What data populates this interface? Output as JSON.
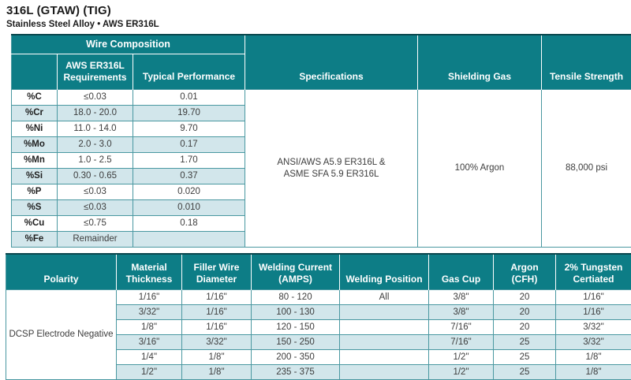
{
  "doc": {
    "title": "316L (GTAW) (TIG)",
    "subtitle": "Stainless Steel Alloy • AWS ER316L"
  },
  "colors": {
    "header_teal": "#0D7D86",
    "row_stripe": "#D2E6EB",
    "grid_border": "#4A98A1",
    "table_top_border": "#0A474D"
  },
  "composition_table": {
    "title": "Wire Composition",
    "columns": {
      "requirements_line1": "AWS ER316L",
      "requirements_line2": "Requirements",
      "typical": "Typical Performance",
      "specifications": "Specifications",
      "shielding_gas": "Shielding Gas",
      "tensile_strength": "Tensile Strength"
    },
    "rows": [
      {
        "element": "%C",
        "requirement": "≤0.03",
        "typical": "0.01"
      },
      {
        "element": "%Cr",
        "requirement": "18.0 - 20.0",
        "typical": "19.70"
      },
      {
        "element": "%Ni",
        "requirement": "11.0 - 14.0",
        "typical": "9.70"
      },
      {
        "element": "%Mo",
        "requirement": "2.0 - 3.0",
        "typical": "0.17"
      },
      {
        "element": "%Mn",
        "requirement": "1.0 - 2.5",
        "typical": "1.70"
      },
      {
        "element": "%Si",
        "requirement": "0.30 - 0.65",
        "typical": "0.37"
      },
      {
        "element": "%P",
        "requirement": "≤0.03",
        "typical": "0.020"
      },
      {
        "element": "%S",
        "requirement": "≤0.03",
        "typical": "0.010"
      },
      {
        "element": "%Cu",
        "requirement": "≤0.75",
        "typical": "0.18"
      },
      {
        "element": "%Fe",
        "requirement": "Remainder",
        "typical": ""
      }
    ],
    "specifications_lines": [
      "ANSI/AWS A5.9 ER316L &",
      "ASME SFA 5.9 ER316L"
    ],
    "shielding_gas": "100% Argon",
    "tensile_strength": "88,000 psi"
  },
  "parameters_table": {
    "headers": [
      {
        "l1": "Polarity",
        "l2": ""
      },
      {
        "l1": "Material",
        "l2": "Thickness"
      },
      {
        "l1": "Filler Wire",
        "l2": "Diameter"
      },
      {
        "l1": "Welding Current",
        "l2": "(AMPS)"
      },
      {
        "l1": "Welding Position",
        "l2": ""
      },
      {
        "l1": "Gas Cup",
        "l2": ""
      },
      {
        "l1": "Argon",
        "l2": "(CFH)"
      },
      {
        "l1": "2% Tungsten",
        "l2": "Certiated"
      }
    ],
    "polarity": "DCSP Electrode Negative",
    "rows": [
      [
        "1/16\"",
        "1/16\"",
        "80 - 120",
        "All",
        "3/8\"",
        "20",
        "1/16\""
      ],
      [
        "3/32\"",
        "1/16\"",
        "100 - 130",
        "",
        "3/8\"",
        "20",
        "1/16\""
      ],
      [
        "1/8\"",
        "1/16\"",
        "120 - 150",
        "",
        "7/16\"",
        "20",
        "3/32\""
      ],
      [
        "3/16\"",
        "3/32\"",
        "150 - 250",
        "",
        "7/16\"",
        "25",
        "3/32\""
      ],
      [
        "1/4\"",
        "1/8\"",
        "200 - 350",
        "",
        "1/2\"",
        "25",
        "1/8\""
      ],
      [
        "1/2\"",
        "1/8\"",
        "235 - 375",
        "",
        "1/2\"",
        "25",
        "1/8\""
      ]
    ]
  }
}
